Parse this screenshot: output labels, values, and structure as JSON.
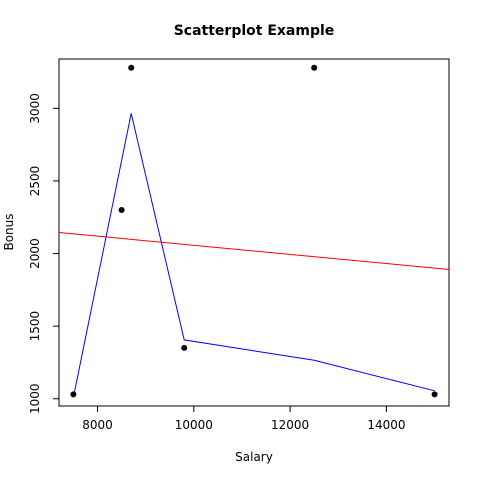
{
  "chart_data": {
    "type": "scatter",
    "title": "Scatterplot Example",
    "xlabel": "Salary",
    "ylabel": "Bonus",
    "xlim": [
      7200,
      15300
    ],
    "ylim": [
      950,
      3340
    ],
    "x_ticks": [
      8000,
      10000,
      12000,
      14000
    ],
    "y_ticks": [
      1000,
      1500,
      2000,
      2500,
      3000
    ],
    "grid": false,
    "points": [
      {
        "x": 7500,
        "y": 1030
      },
      {
        "x": 8500,
        "y": 2300
      },
      {
        "x": 8700,
        "y": 3280
      },
      {
        "x": 9800,
        "y": 1350
      },
      {
        "x": 12500,
        "y": 3280
      },
      {
        "x": 15000,
        "y": 1030
      }
    ],
    "lines": [
      {
        "color": "#ff0000",
        "points": [
          {
            "x": 7200,
            "y": 2145
          },
          {
            "x": 15300,
            "y": 1890
          }
        ]
      },
      {
        "color": "#0000ff",
        "points": [
          {
            "x": 7500,
            "y": 1010
          },
          {
            "x": 8700,
            "y": 2965
          },
          {
            "x": 9800,
            "y": 1405
          },
          {
            "x": 12500,
            "y": 1265
          },
          {
            "x": 15000,
            "y": 1055
          }
        ]
      }
    ],
    "colors": {
      "points": "#000000",
      "axes": "#000000"
    }
  }
}
